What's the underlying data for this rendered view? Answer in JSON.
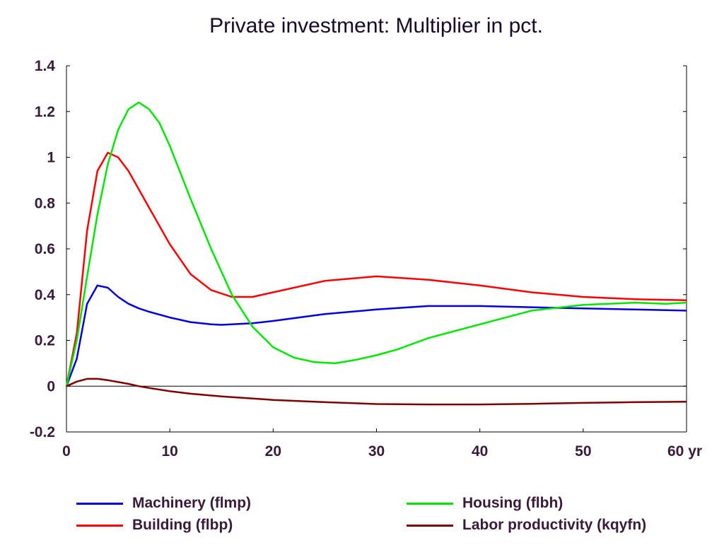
{
  "chart_data": {
    "type": "line",
    "title": "Private investment: Multiplier in pct.",
    "xlim": [
      0,
      60
    ],
    "ylim": [
      -0.2,
      1.4
    ],
    "x_ticks": [
      0,
      10,
      20,
      30,
      40,
      50,
      60
    ],
    "x_tick_labels": [
      "0",
      "10",
      "20",
      "30",
      "40",
      "50",
      "60 yr"
    ],
    "y_ticks": [
      -0.2,
      0,
      0.2,
      0.4,
      0.6,
      0.8,
      1,
      1.2,
      1.4
    ],
    "y_tick_labels": [
      "-0.2",
      "0",
      "0.2",
      "0.4",
      "0.6",
      "0.8",
      "1",
      "1.2",
      "1.4"
    ],
    "grid": false,
    "zero_line": true,
    "legend_position": "bottom",
    "series": [
      {
        "name": "Machinery (flmp)",
        "color": "#0000e0",
        "x": [
          0,
          1,
          2,
          3,
          4,
          5,
          6,
          7,
          8,
          10,
          12,
          14,
          15,
          16,
          18,
          20,
          25,
          30,
          35,
          40,
          45,
          50,
          55,
          60
        ],
        "y": [
          0,
          0.12,
          0.36,
          0.44,
          0.43,
          0.39,
          0.36,
          0.34,
          0.325,
          0.3,
          0.28,
          0.27,
          0.268,
          0.27,
          0.275,
          0.285,
          0.315,
          0.335,
          0.35,
          0.35,
          0.345,
          0.34,
          0.335,
          0.33
        ]
      },
      {
        "name": "Building (flbp)",
        "color": "#ff0000",
        "x": [
          0,
          1,
          2,
          3,
          4,
          5,
          6,
          7,
          8,
          10,
          12,
          14,
          16,
          18,
          20,
          25,
          30,
          35,
          40,
          45,
          50,
          55,
          60
        ],
        "y": [
          0,
          0.23,
          0.68,
          0.94,
          1.02,
          1.0,
          0.94,
          0.86,
          0.78,
          0.62,
          0.49,
          0.42,
          0.39,
          0.39,
          0.41,
          0.46,
          0.48,
          0.465,
          0.44,
          0.41,
          0.39,
          0.38,
          0.375
        ]
      },
      {
        "name": "Housing (flbh)",
        "color": "#00e800",
        "x": [
          0,
          1,
          2,
          3,
          4,
          5,
          6,
          7,
          8,
          9,
          10,
          12,
          14,
          16,
          18,
          20,
          22,
          24,
          26,
          28,
          30,
          32,
          35,
          40,
          45,
          50,
          55,
          58,
          60
        ],
        "y": [
          0,
          0.2,
          0.48,
          0.75,
          0.97,
          1.12,
          1.21,
          1.24,
          1.21,
          1.15,
          1.05,
          0.82,
          0.6,
          0.4,
          0.26,
          0.17,
          0.125,
          0.105,
          0.1,
          0.115,
          0.135,
          0.16,
          0.21,
          0.27,
          0.33,
          0.355,
          0.365,
          0.36,
          0.365
        ]
      },
      {
        "name": "Labor productivity (kqyfn)",
        "color": "#800000",
        "x": [
          0,
          1,
          2,
          3,
          4,
          5,
          6,
          7,
          8,
          10,
          12,
          15,
          20,
          25,
          30,
          35,
          40,
          45,
          50,
          55,
          60
        ],
        "y": [
          0,
          0.02,
          0.032,
          0.032,
          0.026,
          0.018,
          0.01,
          0.0,
          -0.008,
          -0.022,
          -0.033,
          -0.045,
          -0.06,
          -0.07,
          -0.078,
          -0.08,
          -0.08,
          -0.077,
          -0.073,
          -0.07,
          -0.068
        ]
      }
    ]
  }
}
